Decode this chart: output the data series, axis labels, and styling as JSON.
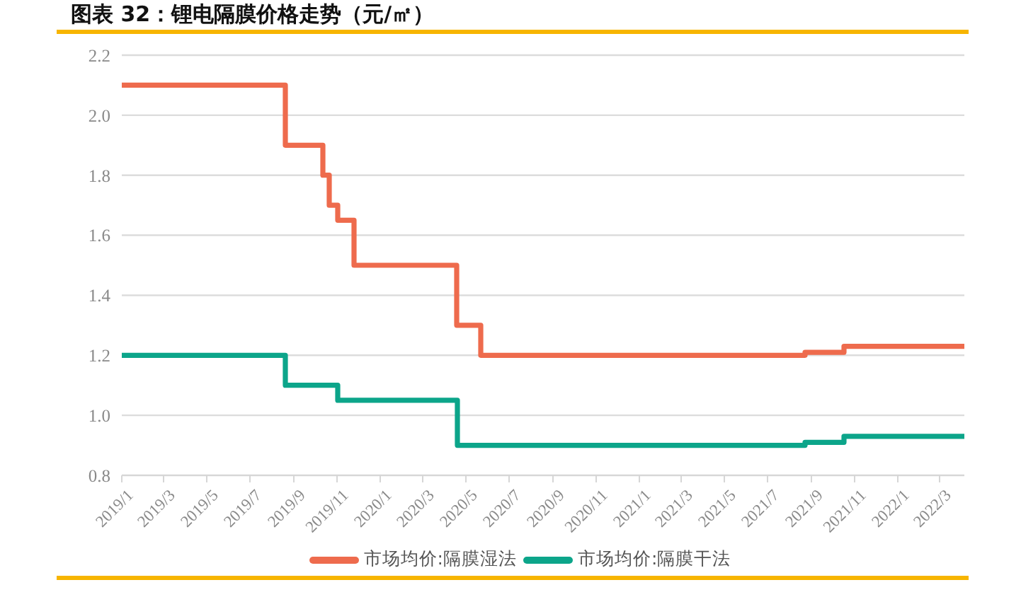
{
  "chart_data": {
    "type": "step",
    "title": "图表 32：锂电隔膜价格走势（元/㎡）",
    "xlim": [
      "2019-01-01",
      "2022-04-05"
    ],
    "xticks": [
      {
        "value": "2019-01",
        "label": "2019/1"
      },
      {
        "value": "2019-03",
        "label": "2019/3"
      },
      {
        "value": "2019-05",
        "label": "2019/5"
      },
      {
        "value": "2019-07",
        "label": "2019/7"
      },
      {
        "value": "2019-09",
        "label": "2019/9"
      },
      {
        "value": "2019-11",
        "label": "2019/11"
      },
      {
        "value": "2020-01",
        "label": "2020/1"
      },
      {
        "value": "2020-03",
        "label": "2020/3"
      },
      {
        "value": "2020-05",
        "label": "2020/5"
      },
      {
        "value": "2020-07",
        "label": "2020/7"
      },
      {
        "value": "2020-09",
        "label": "2020/9"
      },
      {
        "value": "2020-11",
        "label": "2020/11"
      },
      {
        "value": "2021-01",
        "label": "2021/1"
      },
      {
        "value": "2021-03",
        "label": "2021/3"
      },
      {
        "value": "2021-05",
        "label": "2021/5"
      },
      {
        "value": "2021-07",
        "label": "2021/7"
      },
      {
        "value": "2021-09",
        "label": "2021/9"
      },
      {
        "value": "2021-11",
        "label": "2021/11"
      },
      {
        "value": "2022-01",
        "label": "2022/1"
      },
      {
        "value": "2022-03",
        "label": "2022/3"
      }
    ],
    "ylim": [
      0.8,
      2.2
    ],
    "yticks": [
      0.8,
      {
        "value": 1,
        "label": "1.0"
      },
      1.2,
      1.4,
      1.6,
      1.8,
      {
        "value": 2,
        "label": "2.0"
      },
      2.2
    ],
    "grid": "y",
    "legend": "bottom",
    "line_style": "solid",
    "series": [
      {
        "name": "市场均价:隔膜湿法",
        "color": "#ee6b4d",
        "x": [
          "2019-01-01",
          "2019-08-20",
          "2019-10-12",
          "2019-10-21",
          "2019-11-02",
          "2019-11-25",
          "2020-04-18",
          "2020-05-22",
          "2021-08-23",
          "2021-10-17",
          "2022-04-05"
        ],
        "values": [
          2.1,
          1.9,
          1.8,
          1.7,
          1.65,
          1.5,
          1.3,
          1.2,
          1.21,
          1.23,
          1.23
        ]
      },
      {
        "name": "市场均价:隔膜干法",
        "color": "#0ca58a",
        "x": [
          "2019-01-01",
          "2019-08-20",
          "2019-11-02",
          "2020-04-19",
          "2021-08-23",
          "2021-10-17",
          "2022-04-05"
        ],
        "values": [
          1.2,
          1.1,
          1.05,
          0.9,
          0.91,
          0.93,
          0.93
        ]
      }
    ]
  }
}
